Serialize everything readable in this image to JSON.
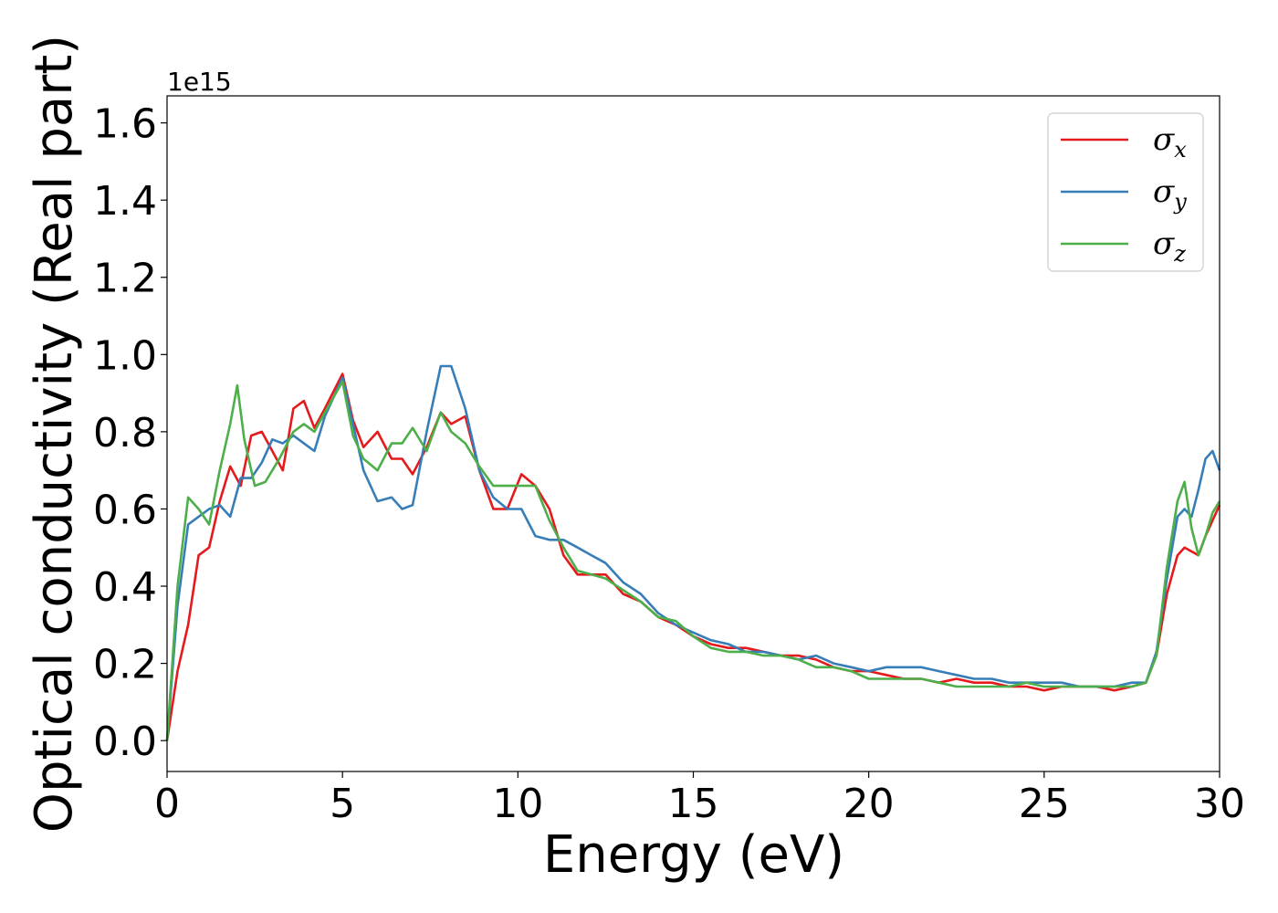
{
  "chart_data": {
    "type": "line",
    "title": "",
    "xlabel": "Energy (eV)",
    "ylabel": "Optical conductivity (Real part)",
    "y_offset_label": "1e15",
    "xlim": [
      0,
      30
    ],
    "ylim": [
      -0.08,
      1.67
    ],
    "x_ticks": [
      0,
      5,
      10,
      15,
      20,
      25,
      30
    ],
    "x_tick_labels": [
      "0",
      "5",
      "10",
      "15",
      "20",
      "25",
      "30"
    ],
    "y_ticks": [
      0.0,
      0.2,
      0.4,
      0.6,
      0.8,
      1.0,
      1.2,
      1.4,
      1.6
    ],
    "y_tick_labels": [
      "0.0",
      "0.2",
      "0.4",
      "0.6",
      "0.8",
      "1.0",
      "1.2",
      "1.4",
      "1.6"
    ],
    "grid": false,
    "legend_position": "top-right",
    "series": [
      {
        "name": "σx",
        "legend_symbol": "σ",
        "legend_subscript": "x",
        "color": "#e41a1c",
        "x": [
          0,
          0.3,
          0.6,
          0.9,
          1.2,
          1.5,
          1.8,
          2.1,
          2.4,
          2.7,
          3.0,
          3.3,
          3.6,
          3.9,
          4.2,
          4.5,
          5.0,
          5.3,
          5.6,
          6.0,
          6.4,
          6.7,
          7.0,
          7.4,
          7.8,
          8.1,
          8.5,
          8.9,
          9.3,
          9.7,
          10.1,
          10.5,
          10.9,
          11.3,
          11.7,
          12.1,
          12.5,
          13.0,
          13.5,
          14.0,
          14.5,
          15.0,
          15.5,
          16.0,
          16.5,
          17.0,
          17.5,
          18.0,
          18.5,
          19.0,
          19.5,
          20.0,
          20.5,
          21.0,
          21.5,
          22.0,
          22.5,
          23.0,
          23.5,
          24.0,
          24.5,
          25.0,
          25.5,
          26.0,
          26.5,
          27.0,
          27.5,
          27.9,
          28.2,
          28.5,
          28.8,
          29.0,
          29.2,
          29.4,
          29.6,
          29.8,
          30.0
        ],
        "values": [
          0.0,
          0.18,
          0.3,
          0.48,
          0.5,
          0.62,
          0.71,
          0.66,
          0.79,
          0.8,
          0.75,
          0.7,
          0.86,
          0.88,
          0.81,
          0.86,
          0.95,
          0.83,
          0.76,
          0.8,
          0.73,
          0.73,
          0.69,
          0.76,
          0.85,
          0.82,
          0.84,
          0.7,
          0.6,
          0.6,
          0.69,
          0.66,
          0.6,
          0.48,
          0.43,
          0.43,
          0.43,
          0.38,
          0.36,
          0.32,
          0.3,
          0.27,
          0.25,
          0.24,
          0.24,
          0.23,
          0.22,
          0.22,
          0.21,
          0.19,
          0.18,
          0.18,
          0.17,
          0.16,
          0.16,
          0.15,
          0.16,
          0.15,
          0.15,
          0.14,
          0.14,
          0.13,
          0.14,
          0.14,
          0.14,
          0.13,
          0.14,
          0.15,
          0.22,
          0.38,
          0.48,
          0.5,
          0.49,
          0.48,
          0.53,
          0.57,
          0.61
        ]
      },
      {
        "name": "σy",
        "legend_symbol": "σ",
        "legend_subscript": "y",
        "color": "#377eb8",
        "x": [
          0,
          0.3,
          0.6,
          0.9,
          1.2,
          1.5,
          1.8,
          2.1,
          2.4,
          2.7,
          3.0,
          3.3,
          3.6,
          3.9,
          4.2,
          4.5,
          5.0,
          5.3,
          5.6,
          6.0,
          6.4,
          6.7,
          7.0,
          7.4,
          7.8,
          8.1,
          8.5,
          8.9,
          9.3,
          9.7,
          10.1,
          10.5,
          10.9,
          11.3,
          11.7,
          12.1,
          12.5,
          13.0,
          13.5,
          14.0,
          14.5,
          15.0,
          15.5,
          16.0,
          16.5,
          17.0,
          17.5,
          18.0,
          18.5,
          19.0,
          19.5,
          20.0,
          20.5,
          21.0,
          21.5,
          22.0,
          22.5,
          23.0,
          23.5,
          24.0,
          24.5,
          25.0,
          25.5,
          26.0,
          26.5,
          27.0,
          27.5,
          27.9,
          28.2,
          28.5,
          28.8,
          29.0,
          29.2,
          29.4,
          29.6,
          29.8,
          30.0
        ],
        "values": [
          0.0,
          0.35,
          0.56,
          0.58,
          0.6,
          0.61,
          0.58,
          0.68,
          0.68,
          0.72,
          0.78,
          0.77,
          0.79,
          0.77,
          0.75,
          0.84,
          0.94,
          0.82,
          0.7,
          0.62,
          0.63,
          0.6,
          0.61,
          0.8,
          0.97,
          0.97,
          0.86,
          0.7,
          0.63,
          0.6,
          0.6,
          0.53,
          0.52,
          0.52,
          0.5,
          0.48,
          0.46,
          0.41,
          0.38,
          0.33,
          0.3,
          0.28,
          0.26,
          0.25,
          0.23,
          0.23,
          0.22,
          0.21,
          0.22,
          0.2,
          0.19,
          0.18,
          0.19,
          0.19,
          0.19,
          0.18,
          0.17,
          0.16,
          0.16,
          0.15,
          0.15,
          0.15,
          0.15,
          0.14,
          0.14,
          0.14,
          0.15,
          0.15,
          0.23,
          0.42,
          0.58,
          0.6,
          0.58,
          0.65,
          0.73,
          0.75,
          0.7
        ]
      },
      {
        "name": "σz",
        "legend_symbol": "σ",
        "legend_subscript": "z",
        "color": "#4daf4a",
        "x": [
          0,
          0.3,
          0.6,
          0.9,
          1.2,
          1.5,
          1.8,
          2.0,
          2.2,
          2.5,
          2.8,
          3.2,
          3.6,
          3.9,
          4.2,
          4.5,
          5.0,
          5.3,
          5.6,
          6.0,
          6.4,
          6.7,
          7.0,
          7.4,
          7.8,
          8.1,
          8.5,
          8.9,
          9.3,
          9.7,
          10.1,
          10.5,
          10.9,
          11.3,
          11.7,
          12.1,
          12.5,
          13.0,
          13.5,
          14.0,
          14.5,
          15.0,
          15.5,
          16.0,
          16.5,
          17.0,
          17.5,
          18.0,
          18.5,
          19.0,
          19.5,
          20.0,
          20.5,
          21.0,
          21.5,
          22.0,
          22.5,
          23.0,
          23.5,
          24.0,
          24.5,
          25.0,
          25.5,
          26.0,
          26.5,
          27.0,
          27.5,
          27.9,
          28.2,
          28.5,
          28.8,
          29.0,
          29.2,
          29.4,
          29.6,
          29.8,
          30.0
        ],
        "values": [
          0.0,
          0.4,
          0.63,
          0.6,
          0.56,
          0.7,
          0.82,
          0.92,
          0.78,
          0.66,
          0.67,
          0.73,
          0.8,
          0.82,
          0.8,
          0.85,
          0.93,
          0.79,
          0.73,
          0.7,
          0.77,
          0.77,
          0.81,
          0.75,
          0.85,
          0.8,
          0.77,
          0.71,
          0.66,
          0.66,
          0.66,
          0.66,
          0.57,
          0.5,
          0.44,
          0.43,
          0.42,
          0.39,
          0.36,
          0.32,
          0.31,
          0.27,
          0.24,
          0.23,
          0.23,
          0.22,
          0.22,
          0.21,
          0.19,
          0.19,
          0.18,
          0.16,
          0.16,
          0.16,
          0.16,
          0.15,
          0.14,
          0.14,
          0.14,
          0.14,
          0.15,
          0.14,
          0.14,
          0.14,
          0.14,
          0.14,
          0.14,
          0.15,
          0.22,
          0.45,
          0.62,
          0.67,
          0.55,
          0.48,
          0.53,
          0.59,
          0.62
        ]
      }
    ]
  }
}
